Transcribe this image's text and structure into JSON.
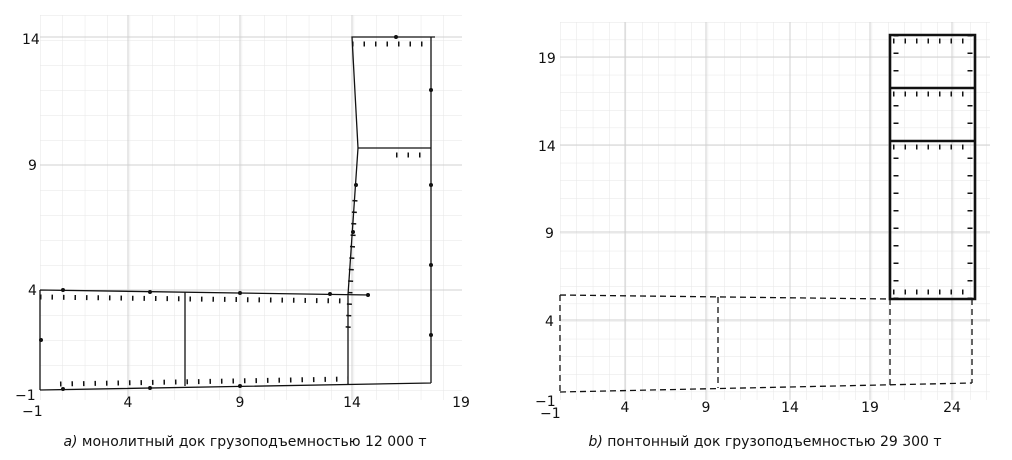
{
  "panels": [
    {
      "x_ticks": [
        "−1",
        "4",
        "9",
        "14",
        "19"
      ],
      "y_ticks": [
        "−1",
        "4",
        "9",
        "14"
      ],
      "caption_label": "a)",
      "caption": " монолитный док грузоподъемностью 12 000 т"
    },
    {
      "x_ticks": [
        "−1",
        "4",
        "9",
        "14",
        "19",
        "24"
      ],
      "y_ticks": [
        "−1",
        "4",
        "9",
        "14",
        "19"
      ],
      "caption_label": "b)",
      "caption": " понтонный док грузоподъемностью 29 300 т"
    }
  ]
}
